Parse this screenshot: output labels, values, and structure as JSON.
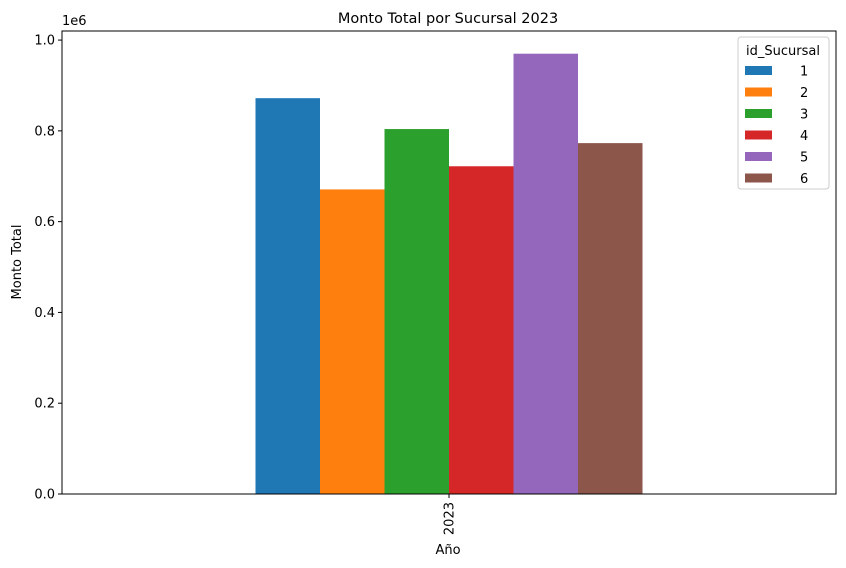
{
  "chart_data": {
    "type": "bar",
    "title": "Monto Total por Sucursal 2023",
    "xlabel": "Año",
    "ylabel": "Monto Total",
    "y_scale_label": "1e6",
    "categories": [
      "2023"
    ],
    "ylim": [
      0,
      1.02
    ],
    "y_ticks": [
      "0.0",
      "0.2",
      "0.4",
      "0.6",
      "0.8",
      "1.0"
    ],
    "legend": {
      "title": "id_Sucursal",
      "placement": "top-right"
    },
    "grid": false,
    "series": [
      {
        "name": "1",
        "color": "#1f77b4",
        "values": [
          0.872
        ]
      },
      {
        "name": "2",
        "color": "#ff7f0e",
        "values": [
          0.671
        ]
      },
      {
        "name": "3",
        "color": "#2ca02c",
        "values": [
          0.804
        ]
      },
      {
        "name": "4",
        "color": "#d62728",
        "values": [
          0.722
        ]
      },
      {
        "name": "5",
        "color": "#9467bd",
        "values": [
          0.97
        ]
      },
      {
        "name": "6",
        "color": "#8c564b",
        "values": [
          0.773
        ]
      }
    ]
  }
}
